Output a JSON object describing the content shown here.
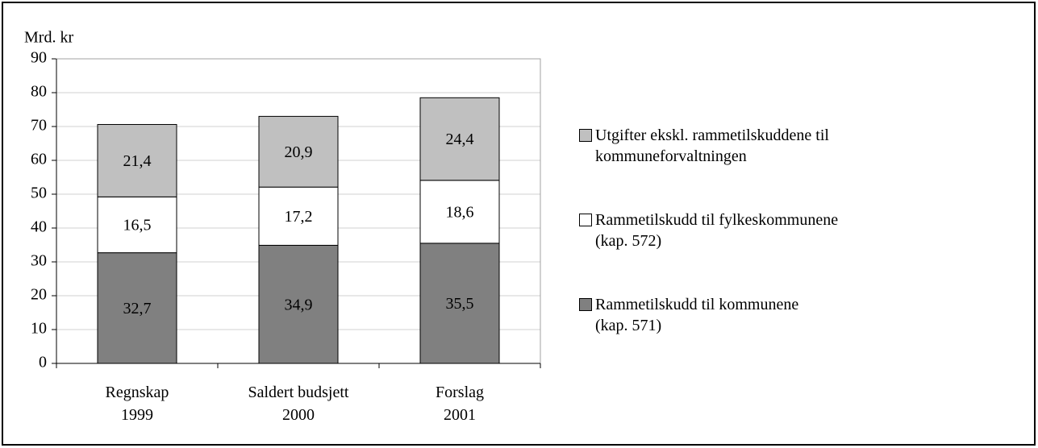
{
  "chart_data": {
    "type": "stacked_bar",
    "y_label": "Mrd. kr",
    "categories": [
      "Regnskap\n1999",
      "Saldert budsjett\n2000",
      "Forslag\n2001"
    ],
    "series": [
      {
        "name": "Rammetilskudd til kommunene\n(kap. 571)",
        "color": "#808080",
        "values": [
          32.7,
          34.9,
          35.5
        ],
        "value_labels": [
          "32,7",
          "34,9",
          "35,5"
        ]
      },
      {
        "name": "Rammetilskudd til fylkeskommunene\n(kap. 572)",
        "color": "#ffffff",
        "values": [
          16.5,
          17.2,
          18.6
        ],
        "value_labels": [
          "16,5",
          "17,2",
          "18,6"
        ]
      },
      {
        "name": "Utgifter ekskl. rammetilskuddene til\nkommuneforvaltningen",
        "color": "#c0c0c0",
        "values": [
          21.4,
          20.9,
          24.4
        ],
        "value_labels": [
          "21,4",
          "20,9",
          "24,4"
        ]
      }
    ],
    "ylim": [
      0,
      90
    ],
    "yticks": [
      0,
      10,
      20,
      30,
      40,
      50,
      60,
      70,
      80,
      90
    ],
    "grid": true,
    "legend": "right"
  }
}
